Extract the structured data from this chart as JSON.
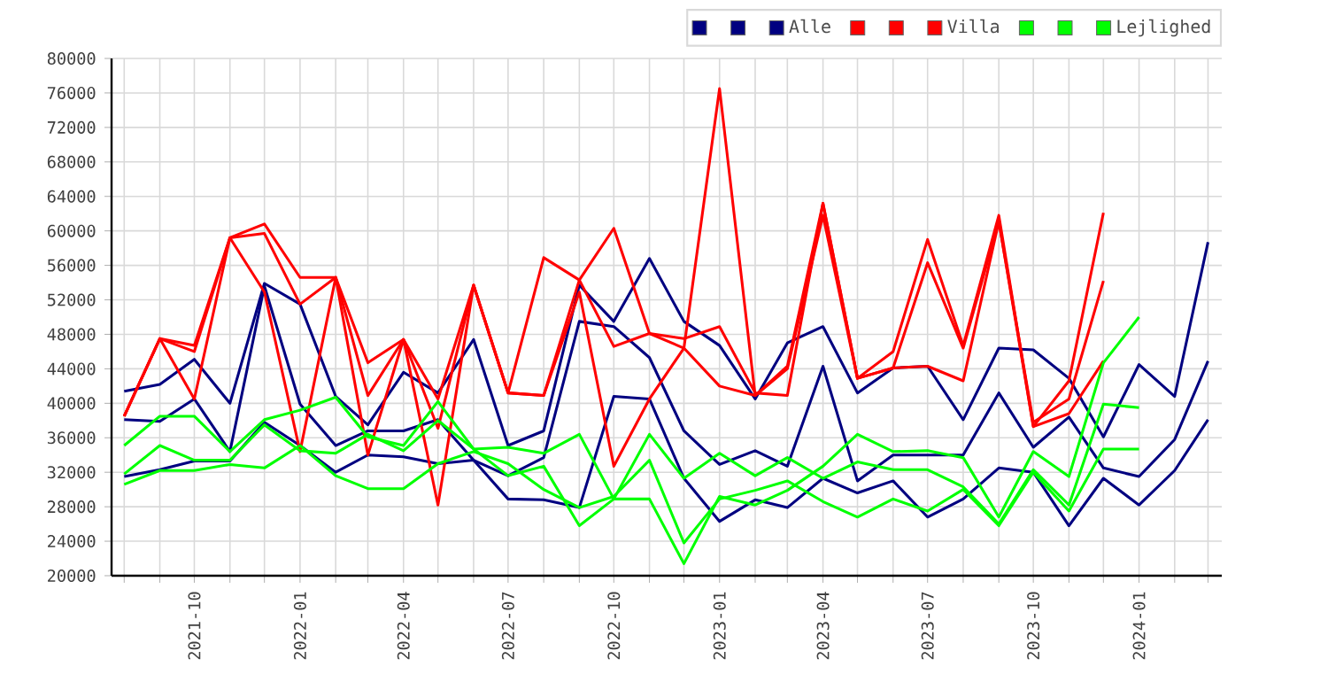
{
  "chart_data": {
    "type": "line",
    "x": [
      "2021-08",
      "2021-09",
      "2021-10",
      "2021-11",
      "2021-12",
      "2022-01",
      "2022-02",
      "2022-03",
      "2022-04",
      "2022-05",
      "2022-06",
      "2022-07",
      "2022-08",
      "2022-09",
      "2022-10",
      "2022-11",
      "2022-12",
      "2023-01",
      "2023-02",
      "2023-03",
      "2023-04",
      "2023-05",
      "2023-06",
      "2023-07",
      "2023-08",
      "2023-09",
      "2023-10",
      "2023-11",
      "2023-12",
      "2024-01",
      "2024-02",
      "2024-03"
    ],
    "series": [
      {
        "color": "#000080",
        "values": [
          41400,
          42200,
          45100,
          40000,
          53900,
          51500,
          40800,
          37500,
          43600,
          41200,
          47400,
          35100,
          36800,
          53700,
          49500,
          56800,
          49500,
          46700,
          40500,
          47000,
          48900,
          41200,
          44100,
          44300,
          38100,
          46400,
          46200,
          42900,
          36100,
          44500,
          40800,
          58700
        ]
      },
      {
        "color": "#000080",
        "values": [
          38100,
          37900,
          40500,
          34400,
          53600,
          39900,
          35100,
          36800,
          36800,
          38100,
          33400,
          31600,
          33700,
          49500,
          48900,
          45300,
          36800,
          32900,
          34500,
          32700,
          44300,
          31000,
          34000,
          34000,
          34000,
          41200,
          34900,
          38400,
          32500,
          31500,
          35800,
          44900
        ]
      },
      {
        "name": "Alle",
        "color": "#000080",
        "values": [
          31500,
          32300,
          33300,
          33300,
          37800,
          35100,
          32000,
          34000,
          33800,
          33000,
          33400,
          28900,
          28800,
          27900,
          40800,
          40500,
          31300,
          26300,
          28800,
          27900,
          31300,
          29600,
          31000,
          26800,
          28900,
          32500,
          32000,
          25800,
          31300,
          28200,
          32200,
          38100
        ]
      },
      {
        "color": "#ff0000",
        "values": [
          38500,
          47500,
          46700,
          59200,
          60800,
          54600,
          54600,
          44700,
          47400,
          37100,
          53700,
          41200,
          40900,
          54300,
          46600,
          48100,
          47500,
          48900,
          41200,
          40900,
          63200,
          42900,
          46000,
          59000,
          46700,
          61800,
          37300,
          42600,
          62100,
          null,
          null,
          null
        ]
      },
      {
        "color": "#ff0000",
        "values": [
          38500,
          47500,
          40500,
          59200,
          59700,
          51500,
          54600,
          40900,
          47400,
          40500,
          53700,
          41200,
          56900,
          54300,
          60300,
          48100,
          46400,
          42000,
          40900,
          44300,
          63200,
          42900,
          44100,
          56300,
          46400,
          61100,
          37800,
          40500,
          54200,
          null,
          null,
          null
        ]
      },
      {
        "name": "Villa",
        "color": "#ff0000",
        "values": [
          38500,
          47500,
          46000,
          59200,
          52900,
          34400,
          54600,
          34000,
          47400,
          28200,
          53700,
          41200,
          40900,
          52900,
          32700,
          40500,
          46400,
          76500,
          40900,
          44000,
          61800,
          42900,
          44100,
          44300,
          42600,
          61100,
          37300,
          38800,
          44900,
          null,
          null,
          null
        ]
      },
      {
        "color": "#00ff00",
        "values": [
          35100,
          38500,
          38500,
          34400,
          38100,
          39200,
          40700,
          36100,
          35100,
          40200,
          34700,
          34900,
          34200,
          36400,
          28900,
          28900,
          21400,
          29200,
          28200,
          29900,
          32700,
          36400,
          34400,
          34500,
          33700,
          26800,
          34400,
          31500,
          44700,
          50000,
          null,
          null
        ]
      },
      {
        "color": "#00ff00",
        "values": [
          31800,
          35100,
          33400,
          33400,
          37500,
          34500,
          34200,
          36400,
          34500,
          38000,
          34700,
          31600,
          32700,
          25800,
          28900,
          36400,
          31300,
          34200,
          31600,
          33700,
          31300,
          33200,
          32300,
          32300,
          30300,
          26000,
          32300,
          28200,
          39900,
          39500,
          null,
          null
        ]
      },
      {
        "name": "Lejlighed",
        "color": "#00ff00",
        "values": [
          30600,
          32200,
          32200,
          32900,
          32500,
          35100,
          31600,
          30100,
          30100,
          33000,
          34400,
          33000,
          30000,
          27900,
          29200,
          33400,
          23800,
          28900,
          29900,
          31000,
          28600,
          26800,
          28900,
          27500,
          30000,
          25800,
          32000,
          27500,
          34700,
          34700,
          null,
          null
        ]
      }
    ],
    "xlim": [
      "2021-07-21",
      "2024-03-13"
    ],
    "xticks": [
      {
        "value": "2021-08",
        "label": null
      },
      {
        "value": "2021-09",
        "label": null
      },
      "2021-10",
      {
        "value": "2021-11",
        "label": null
      },
      {
        "value": "2021-12",
        "label": null
      },
      "2022-01",
      {
        "value": "2022-02",
        "label": null
      },
      {
        "value": "2022-03",
        "label": null
      },
      "2022-04",
      {
        "value": "2022-05",
        "label": null
      },
      {
        "value": "2022-06",
        "label": null
      },
      "2022-07",
      {
        "value": "2022-08",
        "label": null
      },
      {
        "value": "2022-09",
        "label": null
      },
      "2022-10",
      {
        "value": "2022-11",
        "label": null
      },
      {
        "value": "2022-12",
        "label": null
      },
      "2023-01",
      {
        "value": "2023-02",
        "label": null
      },
      {
        "value": "2023-03",
        "label": null
      },
      "2023-04",
      {
        "value": "2023-05",
        "label": null
      },
      {
        "value": "2023-06",
        "label": null
      },
      "2023-07",
      {
        "value": "2023-08",
        "label": null
      },
      {
        "value": "2023-09",
        "label": null
      },
      "2023-10",
      {
        "value": "2023-11",
        "label": null
      },
      {
        "value": "2023-12",
        "label": null
      },
      "2024-01",
      {
        "value": "2024-02",
        "label": null
      },
      {
        "value": "2024-03",
        "label": null
      }
    ],
    "ylim": [
      20000,
      80000
    ],
    "yticks": [
      20000,
      24000,
      28000,
      32000,
      36000,
      40000,
      44000,
      48000,
      52000,
      56000,
      60000,
      64000,
      68000,
      72000,
      76000,
      80000
    ],
    "grid": true,
    "legend": "top right",
    "marker": "none",
    "line_style": "solid"
  }
}
